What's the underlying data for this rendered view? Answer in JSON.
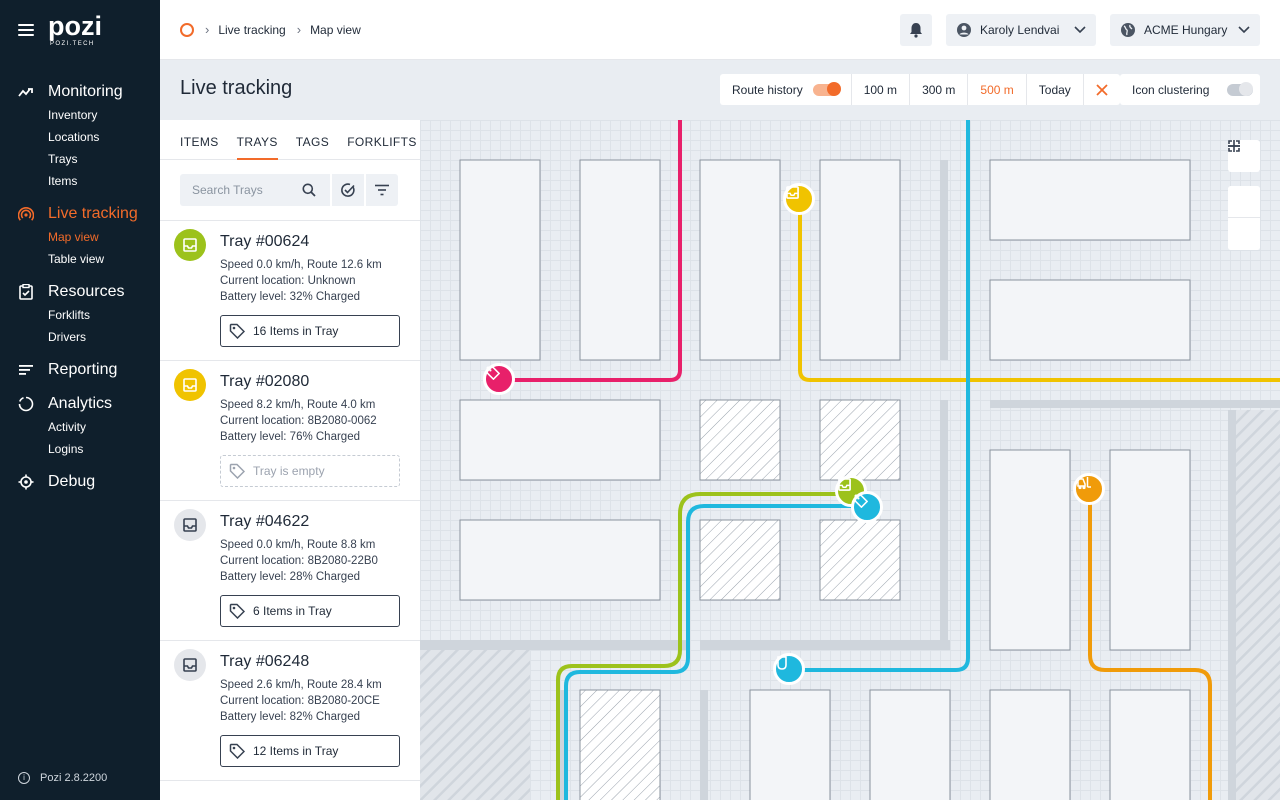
{
  "app": {
    "logo": "pozi",
    "logo_sub": "POZI.TECH",
    "version": "Pozi 2.8.2200"
  },
  "sidebar": {
    "groups": [
      {
        "label": "Monitoring",
        "icon": "monitoring-icon",
        "items": [
          "Inventory",
          "Locations",
          "Trays",
          "Items"
        ]
      },
      {
        "label": "Live tracking",
        "icon": "live-tracking-icon",
        "active": true,
        "items": [
          "Map view",
          "Table view"
        ]
      },
      {
        "label": "Resources",
        "icon": "resources-icon",
        "items": [
          "Forklifts",
          "Drivers"
        ]
      },
      {
        "label": "Reporting",
        "icon": "reporting-icon",
        "items": []
      },
      {
        "label": "Analytics",
        "icon": "analytics-icon",
        "items": [
          "Activity",
          "Logins"
        ]
      },
      {
        "label": "Debug",
        "icon": "debug-icon",
        "items": []
      }
    ]
  },
  "breadcrumb": {
    "items": [
      "Live tracking",
      "Map view"
    ]
  },
  "topbar": {
    "user": "Karoly Lendvai",
    "org": "ACME Hungary"
  },
  "header": {
    "title": "Live tracking",
    "route_history_label": "Route history",
    "route_history_on": true,
    "ranges": [
      "100 m",
      "300 m",
      "500 m",
      "Today"
    ],
    "active_range": "500 m",
    "icon_clustering_label": "Icon clustering",
    "icon_clustering_on": false
  },
  "panel": {
    "tabs": [
      "ITEMS",
      "TRAYS",
      "TAGS",
      "FORKLIFTS"
    ],
    "active_tab": "TRAYS",
    "search_placeholder": "Search Trays",
    "trays": [
      {
        "name": "Tray #00624",
        "speed": "Speed 0.0 km/h, Route 12.6 km",
        "location": "Current location: Unknown",
        "battery": "Battery level: 32% Charged",
        "items": "16 Items in Tray",
        "empty": false,
        "color": "#9cc21b"
      },
      {
        "name": "Tray #02080",
        "speed": "Speed 8.2 km/h, Route 4.0 km",
        "location": "Current location: 8B2080-0062",
        "battery": "Battery level: 76% Charged",
        "items": "Tray is empty",
        "empty": true,
        "color": "#f0c300"
      },
      {
        "name": "Tray #04622",
        "speed": "Speed 0.0 km/h, Route 8.8 km",
        "location": "Current location: 8B2080-22B0",
        "battery": "Battery level: 28% Charged",
        "items": "6 Items in Tray",
        "empty": false,
        "color": "#e5e7eb"
      },
      {
        "name": "Tray #06248",
        "speed": "Speed 2.6 km/h, Route 28.4 km",
        "location": "Current location: 8B2080-20CE",
        "battery": "Battery level: 82% Charged",
        "items": "12 Items in Tray",
        "empty": false,
        "color": "#e5e7eb"
      }
    ]
  },
  "colors": {
    "accent": "#f26b2a",
    "sidebar_bg": "#0f1f2c",
    "pink": "#e8206a",
    "yellow": "#f0c300",
    "green": "#9cc21b",
    "cyan": "#1fb8de",
    "orange": "#f09b0a"
  }
}
